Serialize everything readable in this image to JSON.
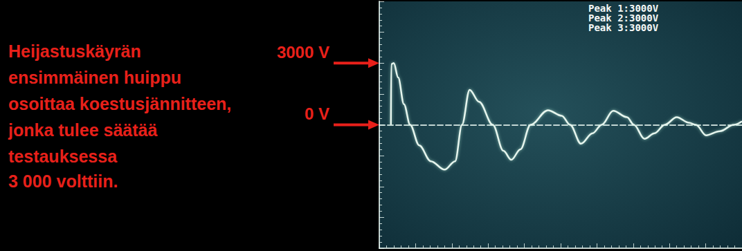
{
  "chart_data": {
    "type": "line",
    "x": [
      0.32,
      0.33,
      0.4,
      0.52,
      0.68,
      0.85,
      1.1,
      1.42,
      1.8,
      2.09,
      2.28,
      2.49,
      2.75,
      3.13,
      3.42,
      3.64,
      3.89,
      4.17,
      4.65,
      5.03,
      5.26,
      5.56,
      5.88,
      6.13,
      6.45,
      6.83,
      7.02,
      7.31,
      7.59,
      7.87,
      8.2,
      8.54,
      8.73,
      9.01,
      9.39,
      9.77,
      10
    ],
    "values": [
      0,
      2950,
      3000,
      2300,
      1000,
      0,
      -1000,
      -1770,
      -2180,
      -1770,
      0,
      1700,
      1120,
      0,
      -1260,
      -1700,
      -1190,
      0,
      710,
      440,
      0,
      -920,
      -410,
      0,
      680,
      370,
      0,
      -680,
      -410,
      0,
      370,
      100,
      0,
      -510,
      -310,
      0,
      170
    ],
    "color": "#e6f5ee",
    "line_style": "solid",
    "xlim": [
      0,
      10
    ],
    "xticks": [
      0,
      1,
      2,
      3,
      4,
      5,
      6,
      7,
      8,
      9,
      10
    ],
    "ylim": [
      -6000,
      6000
    ],
    "yticks": [
      -6000,
      -4500,
      -3000,
      -1500,
      0,
      1500,
      3000,
      4500,
      6000
    ],
    "grid": false,
    "tick_labels": false,
    "annotations": {
      "caption": [
        "Heijastuskäyrän",
        "ensimmäinen huippu",
        "osoittaa koestusjännitteen,",
        "jonka tulee säätää",
        "testauksessa",
        "3 000 volttiin."
      ],
      "levels": [
        {
          "text": "3000 V",
          "value": 3000
        },
        {
          "text": "0 V",
          "value": 0
        }
      ],
      "readouts": [
        "Peak 1:3000V",
        "Peak 2:3000V",
        "Peak 3:3000V"
      ]
    }
  }
}
